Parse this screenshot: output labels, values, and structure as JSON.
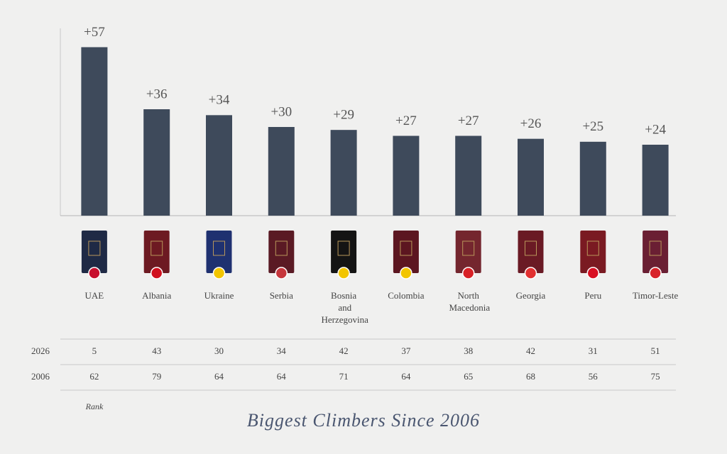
{
  "chart_data": {
    "type": "bar",
    "title": "Biggest Climbers Since 2006",
    "categories": [
      "UAE",
      "Albania",
      "Ukraine",
      "Serbia",
      "Bosnia and Herzegovina",
      "Colombia",
      "North Macedonia",
      "Georgia",
      "Peru",
      "Timor-Leste"
    ],
    "values": [
      57,
      36,
      34,
      30,
      29,
      27,
      27,
      26,
      25,
      24
    ],
    "value_labels": [
      "+57",
      "+36",
      "+34",
      "+30",
      "+29",
      "+27",
      "+27",
      "+26",
      "+25",
      "+24"
    ],
    "color": "#3e4a5b",
    "ylim": [
      0,
      60
    ],
    "table": {
      "rows": [
        {
          "label": "2026",
          "values": [
            "5",
            "43",
            "30",
            "34",
            "42",
            "37",
            "38",
            "42",
            "31",
            "51"
          ]
        },
        {
          "label": "2006",
          "values": [
            "62",
            "79",
            "64",
            "64",
            "71",
            "64",
            "65",
            "68",
            "56",
            "75"
          ]
        }
      ],
      "note": "Rank"
    }
  }
}
